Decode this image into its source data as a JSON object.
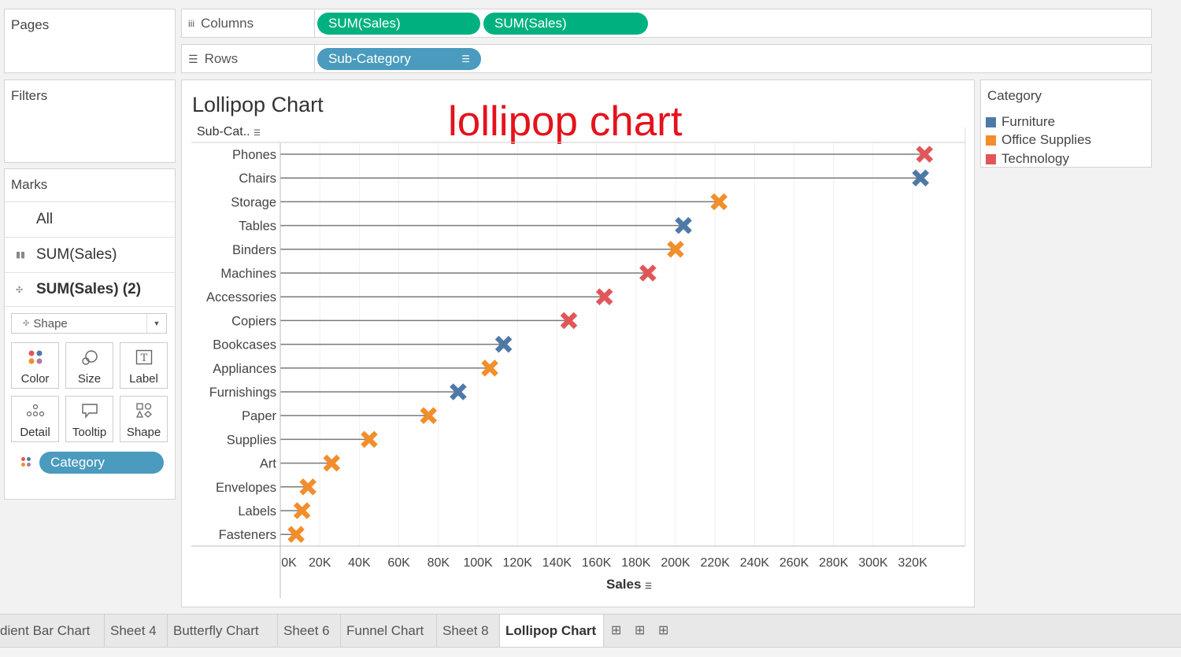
{
  "pages": {
    "title": "Pages"
  },
  "filters": {
    "title": "Filters"
  },
  "columns_shelf": {
    "label": "Columns",
    "pills": [
      "SUM(Sales)",
      "SUM(Sales)"
    ]
  },
  "rows_shelf": {
    "label": "Rows",
    "pill": "Sub-Category"
  },
  "marks": {
    "title": "Marks",
    "cards": [
      "All",
      "SUM(Sales)",
      "SUM(Sales) (2)"
    ],
    "mark_type": "Shape",
    "buttons": [
      "Color",
      "Size",
      "Label",
      "Detail",
      "Tooltip",
      "Shape"
    ],
    "color_field": "Category"
  },
  "viz": {
    "title": "Lollipop Chart",
    "annotation": "lollipop chart",
    "row_header": "Sub-Cat..",
    "x_axis_title": "Sales"
  },
  "legend": {
    "title": "Category",
    "items": [
      {
        "label": "Furniture",
        "color": "#4e79a7"
      },
      {
        "label": "Office Supplies",
        "color": "#f28e2b"
      },
      {
        "label": "Technology",
        "color": "#e15759"
      }
    ]
  },
  "tabs": [
    "dient Bar Chart",
    "Sheet 4",
    "Butterfly Chart",
    "Sheet 6",
    "Funnel Chart",
    "Sheet 8",
    "Lollipop Chart"
  ],
  "active_tab": "Lollipop Chart",
  "chart_data": {
    "type": "scatter",
    "title": "Lollipop Chart",
    "xlabel": "Sales",
    "ylabel": "Sub-Cat..",
    "xlim": [
      0,
      330000
    ],
    "x_ticks": [
      "0K",
      "20K",
      "40K",
      "60K",
      "80K",
      "100K",
      "120K",
      "140K",
      "160K",
      "180K",
      "200K",
      "220K",
      "240K",
      "260K",
      "280K",
      "300K",
      "320K"
    ],
    "categories": [
      "Phones",
      "Chairs",
      "Storage",
      "Tables",
      "Binders",
      "Machines",
      "Accessories",
      "Copiers",
      "Bookcases",
      "Appliances",
      "Furnishings",
      "Paper",
      "Supplies",
      "Art",
      "Envelopes",
      "Labels",
      "Fasteners"
    ],
    "values": [
      326000,
      324000,
      222000,
      204000,
      200000,
      186000,
      164000,
      146000,
      113000,
      106000,
      90000,
      75000,
      45000,
      26000,
      14000,
      11000,
      8000
    ],
    "category_group": [
      "Technology",
      "Furniture",
      "Office Supplies",
      "Furniture",
      "Office Supplies",
      "Technology",
      "Technology",
      "Technology",
      "Furniture",
      "Office Supplies",
      "Furniture",
      "Office Supplies",
      "Office Supplies",
      "Office Supplies",
      "Office Supplies",
      "Office Supplies",
      "Office Supplies"
    ],
    "legend": {
      "title": "Category",
      "position": "right"
    },
    "grid": true
  }
}
